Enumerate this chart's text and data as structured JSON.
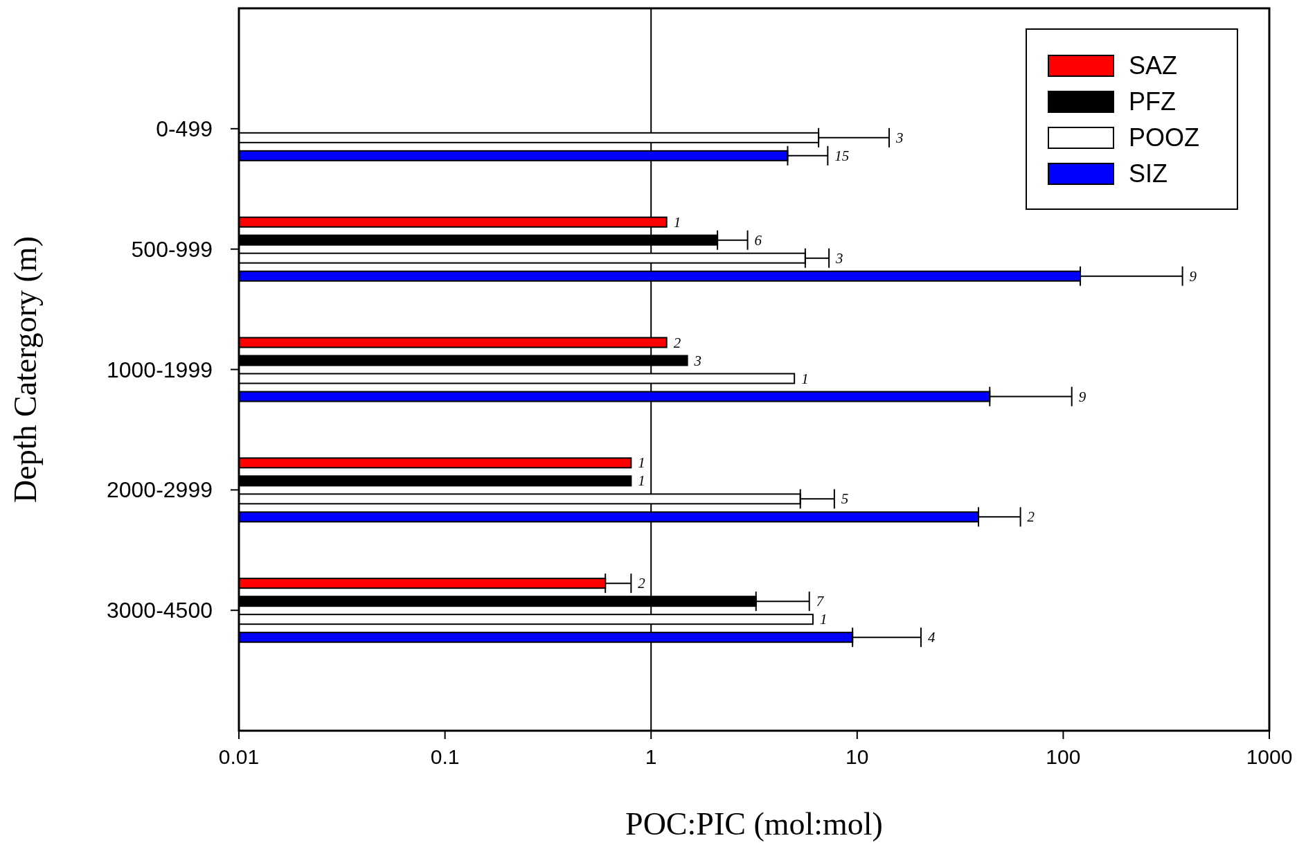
{
  "chart_data": {
    "type": "bar",
    "orientation": "horizontal",
    "ylabel": "Depth Catergory (m)",
    "xlabel": "POC:PIC (mol:mol)",
    "categories": [
      "0-499",
      "500-999",
      "1000-1999",
      "2000-2999",
      "3000-4500"
    ],
    "log": "x",
    "xlim": [
      0.01,
      1000
    ],
    "xticks": [
      0.01,
      0.1,
      1,
      10,
      100,
      1000
    ],
    "grid": false,
    "legend": "top right",
    "ref_lines": [
      {
        "axis": "x",
        "value": 1,
        "color": "#000000"
      }
    ],
    "series": [
      {
        "name": "SAZ",
        "color": "#ff0000",
        "values": [
          null,
          1.19,
          1.19,
          0.8,
          0.6
        ],
        "errors": [
          null,
          null,
          null,
          null,
          [
            0.6,
            0.8
          ]
        ]
      },
      {
        "name": "PFZ",
        "color": "#000000",
        "values": [
          null,
          2.1,
          1.5,
          0.8,
          3.23
        ],
        "errors": [
          null,
          [
            2.1,
            2.94
          ],
          null,
          null,
          [
            3.23,
            5.86
          ]
        ]
      },
      {
        "name": "POOZ",
        "color": "#ffffff",
        "values": [
          6.5,
          5.6,
          4.96,
          5.3,
          6.1
        ],
        "errors": [
          [
            6.5,
            14.3
          ],
          [
            5.6,
            7.3
          ],
          null,
          [
            5.3,
            7.75
          ],
          null
        ]
      },
      {
        "name": "SIZ",
        "color": "#0000ff",
        "values": [
          4.6,
          121,
          44,
          38.8,
          9.5
        ],
        "errors": [
          [
            4.6,
            7.2
          ],
          [
            121,
            379
          ],
          [
            44,
            110
          ],
          [
            38.8,
            62
          ],
          [
            9.5,
            20.4
          ]
        ]
      }
    ],
    "annotations": [
      "3",
      "15",
      "1",
      "6",
      "3",
      "9",
      "2",
      "3",
      "1",
      "9",
      "1",
      "1",
      "5",
      "2",
      "2",
      "7",
      "1",
      "4"
    ]
  }
}
